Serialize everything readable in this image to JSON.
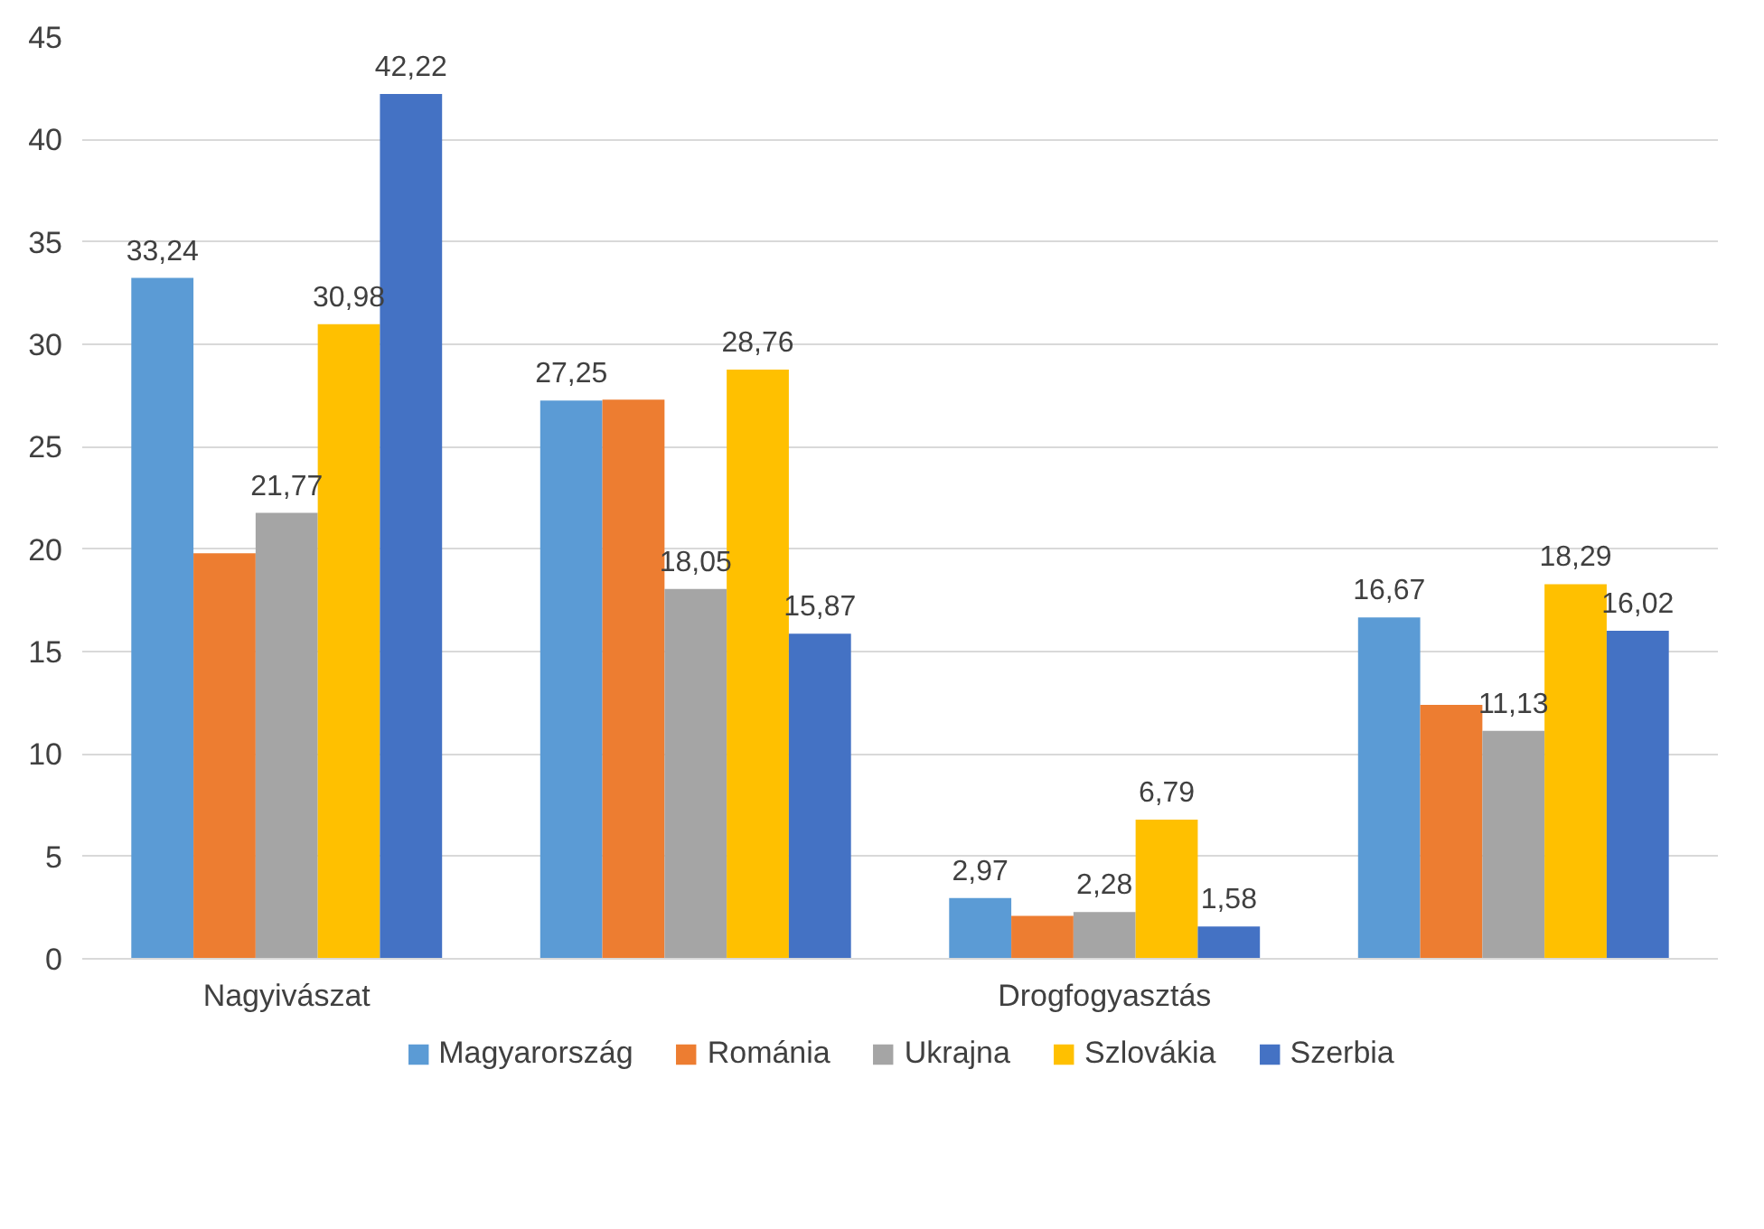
{
  "chart_data": {
    "type": "bar",
    "categories": [
      "Nagyivászat",
      null,
      "Drogfogyasztás",
      null
    ],
    "series": [
      {
        "name": "Magyarország",
        "color": "#5b9bd5",
        "values": [
          33.24,
          27.25,
          2.97,
          16.67
        ],
        "value_labels": [
          "33,24",
          "27,25",
          "2,97",
          "16,67"
        ]
      },
      {
        "name": "Románia",
        "color": "#ed7d31",
        "values": [
          19.8,
          27.3,
          2.1,
          12.4
        ],
        "value_labels": [
          null,
          null,
          null,
          null
        ]
      },
      {
        "name": "Ukrajna",
        "color": "#a5a5a5",
        "values": [
          21.77,
          18.05,
          2.28,
          11.13
        ],
        "value_labels": [
          "21,77",
          "18,05",
          "2,28",
          "11,13"
        ]
      },
      {
        "name": "Szlovákia",
        "color": "#ffc000",
        "values": [
          30.98,
          28.76,
          6.79,
          18.29
        ],
        "value_labels": [
          "30,98",
          "28,76",
          "6,79",
          "18,29"
        ]
      },
      {
        "name": "Szerbia",
        "color": "#4472c4",
        "values": [
          42.22,
          15.87,
          1.58,
          16.02
        ],
        "value_labels": [
          "42,22",
          "15,87",
          "1,58",
          "16,02"
        ]
      }
    ],
    "ylim": [
      0,
      45
    ],
    "yticks": [
      0,
      5,
      10,
      15,
      20,
      25,
      30,
      35,
      40,
      45
    ],
    "grid": "y",
    "legend": "bottom"
  }
}
